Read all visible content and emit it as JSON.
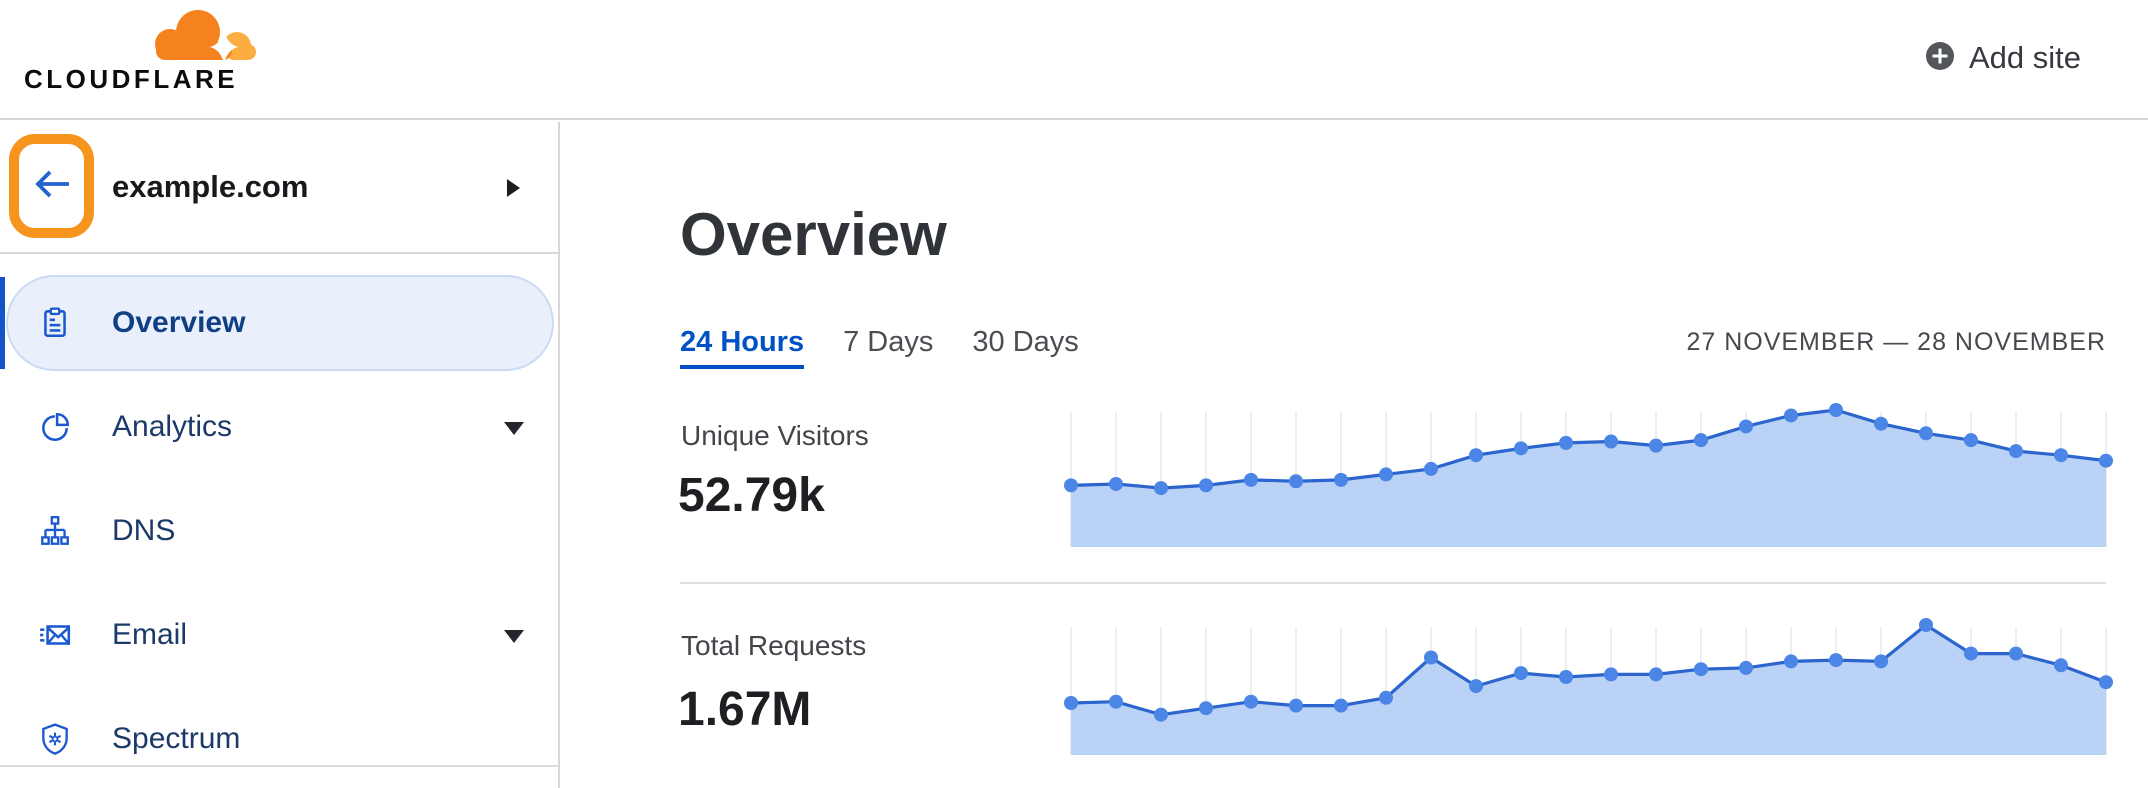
{
  "topbar": {
    "brand": "CLOUDFLARE",
    "add_site_label": "Add site"
  },
  "sidebar": {
    "site_name": "example.com",
    "items": [
      {
        "label": "Overview",
        "icon": "clipboard-icon",
        "selected": true,
        "expandable": false
      },
      {
        "label": "Analytics",
        "icon": "pie-chart-icon",
        "selected": false,
        "expandable": true
      },
      {
        "label": "DNS",
        "icon": "dns-tree-icon",
        "selected": false,
        "expandable": false
      },
      {
        "label": "Email",
        "icon": "email-icon",
        "selected": false,
        "expandable": true
      },
      {
        "label": "Spectrum",
        "icon": "shield-icon",
        "selected": false,
        "expandable": false
      }
    ]
  },
  "main": {
    "title": "Overview",
    "tabs": [
      {
        "label": "24 Hours",
        "active": true
      },
      {
        "label": "7 Days",
        "active": false
      },
      {
        "label": "30 Days",
        "active": false
      }
    ],
    "date_range": "27 NOVEMBER — 28 NOVEMBER"
  },
  "colors": {
    "accent_orange": "#f7941d",
    "active_blue": "#0051c3",
    "icon_blue": "#1c59cf",
    "chart_line": "#2b65cd",
    "chart_fill": "#b9d2f5",
    "chart_dot": "#4b85e6",
    "grid_line": "#e9ecf2"
  },
  "chart_data": [
    {
      "type": "area",
      "title": "Unique Visitors",
      "total_label": "52.79k",
      "x_unit": "hour",
      "x": [
        1,
        2,
        3,
        4,
        5,
        6,
        7,
        8,
        9,
        10,
        11,
        12,
        13,
        14,
        15,
        16,
        17,
        18,
        19,
        20,
        21,
        22,
        23,
        24
      ],
      "values": [
        45,
        46,
        43,
        45,
        49,
        48,
        49,
        53,
        57,
        67,
        72,
        76,
        77,
        74,
        78,
        88,
        96,
        100,
        90,
        83,
        78,
        70,
        67,
        63
      ],
      "ylim": [
        0,
        100
      ],
      "grid": "vertical-per-point",
      "legend": "none"
    },
    {
      "type": "area",
      "title": "Total Requests",
      "total_label": "1.67M",
      "x_unit": "hour",
      "x": [
        1,
        2,
        3,
        4,
        5,
        6,
        7,
        8,
        9,
        10,
        11,
        12,
        13,
        14,
        15,
        16,
        17,
        18,
        19,
        20,
        21,
        22,
        23,
        24
      ],
      "values": [
        40,
        41,
        31,
        36,
        41,
        38,
        38,
        44,
        75,
        53,
        63,
        60,
        62,
        62,
        66,
        67,
        72,
        73,
        72,
        100,
        78,
        78,
        69,
        56
      ],
      "ylim": [
        0,
        100
      ],
      "grid": "vertical-per-point",
      "legend": "none"
    }
  ]
}
